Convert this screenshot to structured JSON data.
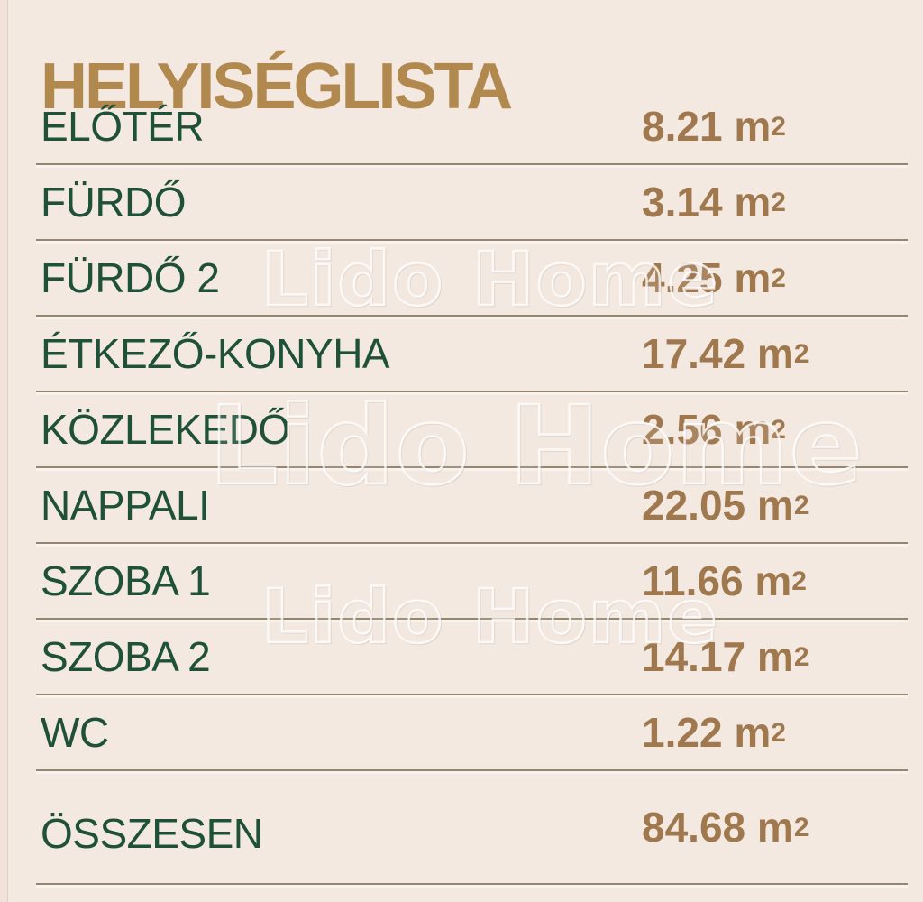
{
  "page": {
    "title": "HELYISÉGLISTA"
  },
  "watermark": {
    "text": "Lido Home"
  },
  "unit": {
    "base": "m",
    "sup": "2"
  },
  "rows": [
    {
      "label": "ELŐTÉR",
      "value": "8.21"
    },
    {
      "label": "FÜRDŐ",
      "value": "3.14"
    },
    {
      "label": "FÜRDŐ 2",
      "value": "4.25"
    },
    {
      "label": "ÉTKEZŐ-KONYHA",
      "value": "17.42"
    },
    {
      "label": "KÖZLEKEDŐ",
      "value": "2.56"
    },
    {
      "label": "NAPPALI",
      "value": "22.05"
    },
    {
      "label": "SZOBA 1",
      "value": "11.66"
    },
    {
      "label": "SZOBA 2",
      "value": "14.17"
    },
    {
      "label": "WC",
      "value": "1.22"
    }
  ],
  "total": {
    "label": "ÖSSZESEN",
    "value": "84.68"
  },
  "colors": {
    "background": "#f4e9e1",
    "room_name": "#1f5138",
    "area_value": "#a0784e",
    "title": "#b1894f",
    "divider": "#96856f",
    "watermark_outline": "#ffffff"
  }
}
